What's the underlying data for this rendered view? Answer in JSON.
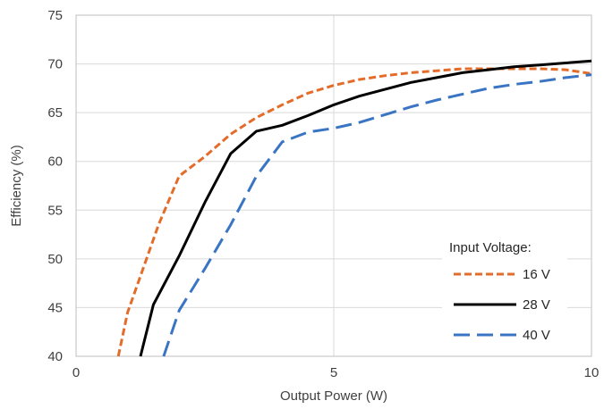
{
  "chart_data": {
    "type": "line",
    "title": "",
    "xlabel": "Output Power (W)",
    "ylabel": "Efficiency (%)",
    "xlim": [
      0,
      10
    ],
    "ylim": [
      40,
      75
    ],
    "xticks": [
      0,
      5,
      10
    ],
    "yticks": [
      40,
      45,
      50,
      55,
      60,
      65,
      70,
      75
    ],
    "grid": "vertical and horizontal, light gray",
    "legend": {
      "title": "Input Voltage:",
      "placement": "bottom-right"
    },
    "series": [
      {
        "name": "16 V",
        "color": "#E46C2A",
        "dash": "short-dash",
        "x": [
          0.82,
          1.0,
          1.3,
          1.6,
          2.0,
          2.5,
          3.0,
          3.5,
          4.0,
          4.5,
          5.0,
          5.5,
          6.0,
          6.5,
          7.0,
          7.5,
          8.0,
          8.5,
          9.0,
          9.5,
          10.0
        ],
        "y": [
          40.0,
          44.5,
          49.0,
          53.5,
          58.5,
          60.5,
          62.8,
          64.5,
          65.8,
          67.0,
          67.8,
          68.4,
          68.8,
          69.1,
          69.3,
          69.5,
          69.5,
          69.5,
          69.5,
          69.4,
          69.0
        ]
      },
      {
        "name": "28 V",
        "color": "#000000",
        "dash": "solid",
        "x": [
          1.25,
          1.5,
          2.0,
          2.5,
          3.0,
          3.5,
          4.0,
          4.5,
          5.0,
          5.5,
          6.0,
          6.5,
          7.0,
          7.5,
          8.0,
          8.5,
          9.0,
          9.5,
          10.0
        ],
        "y": [
          40.0,
          45.3,
          50.3,
          55.8,
          60.8,
          63.1,
          63.7,
          64.7,
          65.8,
          66.7,
          67.4,
          68.1,
          68.6,
          69.1,
          69.4,
          69.7,
          69.9,
          70.1,
          70.3
        ]
      },
      {
        "name": "40 V",
        "color": "#3A75C4",
        "dash": "long-dash",
        "x": [
          1.7,
          2.0,
          2.5,
          3.0,
          3.5,
          4.0,
          4.5,
          5.0,
          5.5,
          6.0,
          6.5,
          7.0,
          7.5,
          8.0,
          8.5,
          9.0,
          9.5,
          10.0
        ],
        "y": [
          40.0,
          44.7,
          49.0,
          53.5,
          58.5,
          62.0,
          63.0,
          63.4,
          64.0,
          64.8,
          65.6,
          66.3,
          66.9,
          67.5,
          67.9,
          68.2,
          68.6,
          68.9
        ]
      }
    ]
  }
}
